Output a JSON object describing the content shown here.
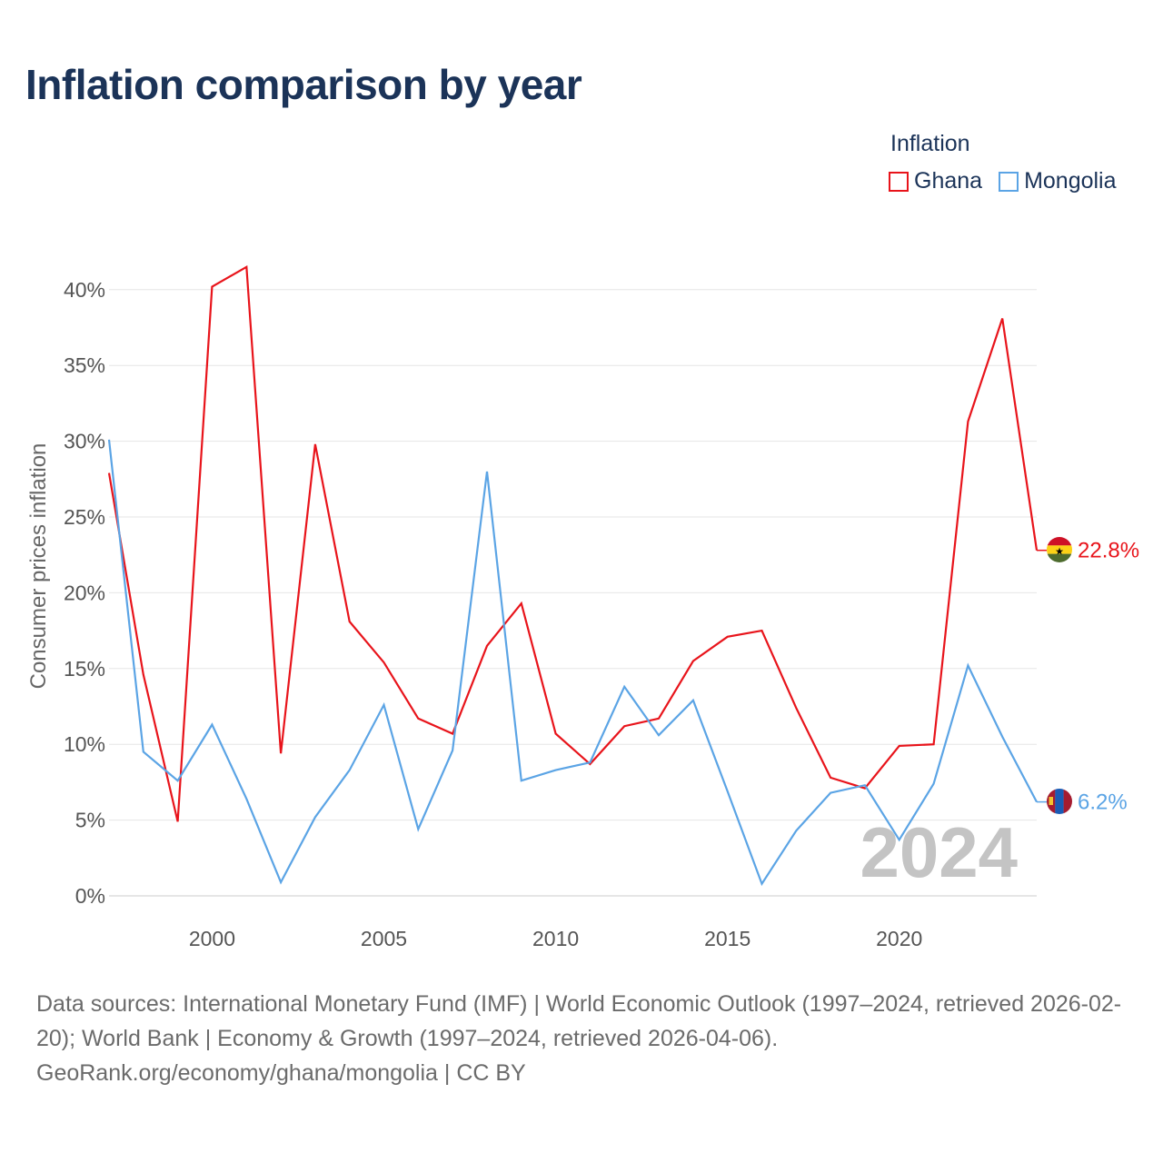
{
  "title": "Inflation comparison by year",
  "legend": {
    "title": "Inflation",
    "items": [
      {
        "label": "Ghana",
        "color": "#e8141b"
      },
      {
        "label": "Mongolia",
        "color": "#5ba4e5"
      }
    ]
  },
  "source": {
    "line1": "Data sources: International Monetary Fund (IMF) | World Economic Outlook (1997–2024, retrieved 2026-02-20); World Bank | Economy & Growth (1997–2024, retrieved 2026-04-06).",
    "line2": "GeoRank.org/economy/ghana/mongolia | CC BY"
  },
  "chart_data": {
    "type": "line",
    "title": "Inflation comparison by year",
    "xlabel": "",
    "ylabel": "Consumer prices inflation",
    "xlim": [
      1997,
      2024
    ],
    "ylim": [
      0,
      41.5
    ],
    "y_ticks": [
      0,
      5,
      10,
      15,
      20,
      25,
      30,
      35,
      40
    ],
    "y_tick_labels": [
      "0%",
      "5%",
      "10%",
      "15%",
      "20%",
      "25%",
      "30%",
      "35%",
      "40%"
    ],
    "x_ticks": [
      2000,
      2005,
      2010,
      2015,
      2020
    ],
    "x_tick_labels": [
      "2000",
      "2005",
      "2010",
      "2015",
      "2020"
    ],
    "grid": true,
    "legend_position": "top-right",
    "watermark": "2024",
    "x": [
      1997,
      1998,
      1999,
      2000,
      2001,
      2002,
      2003,
      2004,
      2005,
      2006,
      2007,
      2008,
      2009,
      2010,
      2011,
      2012,
      2013,
      2014,
      2015,
      2016,
      2017,
      2018,
      2019,
      2020,
      2021,
      2022,
      2023,
      2024
    ],
    "series": [
      {
        "name": "Ghana",
        "color": "#e8141b",
        "end_label": "22.8%",
        "flag": "ghana",
        "values": [
          27.9,
          14.6,
          4.9,
          40.2,
          41.5,
          9.4,
          29.8,
          18.1,
          15.4,
          11.7,
          10.7,
          16.5,
          19.3,
          10.7,
          8.7,
          11.2,
          11.7,
          15.5,
          17.1,
          17.5,
          12.4,
          7.8,
          7.1,
          9.9,
          10.0,
          31.3,
          38.1,
          22.8
        ]
      },
      {
        "name": "Mongolia",
        "color": "#5ba4e5",
        "end_label": "6.2%",
        "flag": "mongolia",
        "values": [
          30.1,
          9.5,
          7.6,
          11.3,
          6.4,
          0.9,
          5.2,
          8.3,
          12.6,
          4.4,
          9.6,
          28.0,
          7.6,
          8.3,
          8.8,
          13.8,
          10.6,
          12.9,
          6.9,
          0.8,
          4.3,
          6.8,
          7.3,
          3.7,
          7.4,
          15.2,
          10.5,
          6.2
        ]
      }
    ]
  }
}
